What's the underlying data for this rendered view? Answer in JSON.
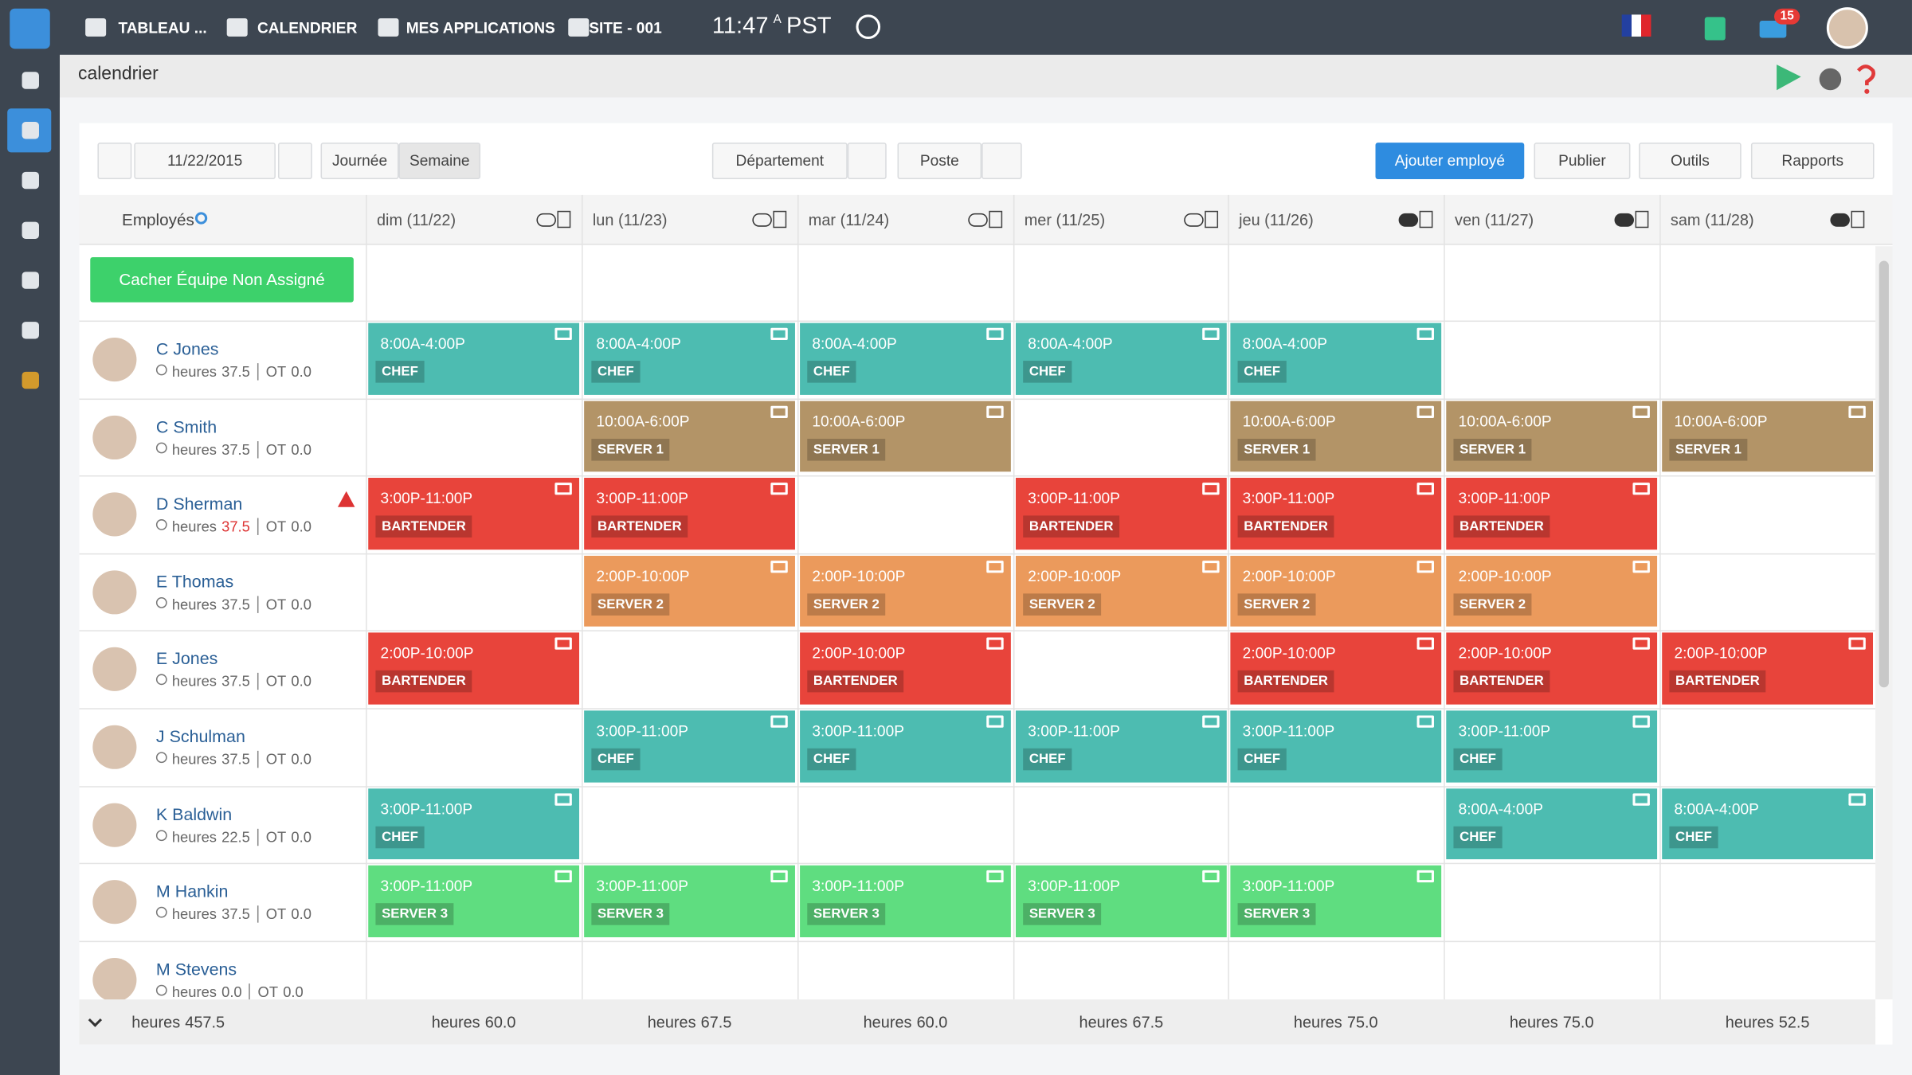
{
  "nav": {
    "items": [
      "TABLEAU ...",
      "CALENDRIER",
      "MES APPLICATIONS",
      "SITE - 001"
    ],
    "time": "11:47",
    "time_suffix": "A",
    "timezone": "PST",
    "badge": "15"
  },
  "page_title": "calendrier",
  "toolbar": {
    "date": "11/22/2015",
    "views": [
      "Journée",
      "Semaine"
    ],
    "filters": [
      "Département",
      "Poste"
    ],
    "actions": [
      "Ajouter employé",
      "Publier",
      "Outils",
      "Rapports"
    ]
  },
  "header": {
    "employees": "Employés",
    "days": [
      "dim (11/22)",
      "lun (11/23)",
      "mar (11/24)",
      "mer (11/25)",
      "jeu (11/26)",
      "ven (11/27)",
      "sam (11/28)"
    ]
  },
  "unassigned_button": "Cacher Équipe Non Assigné",
  "labels": {
    "hours": "heures",
    "ot": "OT"
  },
  "role_colors": {
    "CHEF": "#4dbcb1",
    "SERVER 1": "#b39467",
    "BARTENDER": "#e8443b",
    "SERVER 2": "#eb9a5c",
    "SERVER 3": "#5fdd80"
  },
  "employees": [
    {
      "name": "C Jones",
      "hours": "37.5",
      "ot": "0.0",
      "shifts": [
        {
          "time": "8:00A-4:00P",
          "role": "CHEF"
        },
        {
          "time": "8:00A-4:00P",
          "role": "CHEF"
        },
        {
          "time": "8:00A-4:00P",
          "role": "CHEF"
        },
        {
          "time": "8:00A-4:00P",
          "role": "CHEF"
        },
        {
          "time": "8:00A-4:00P",
          "role": "CHEF"
        },
        null,
        null
      ]
    },
    {
      "name": "C Smith",
      "hours": "37.5",
      "ot": "0.0",
      "shifts": [
        null,
        {
          "time": "10:00A-6:00P",
          "role": "SERVER 1"
        },
        {
          "time": "10:00A-6:00P",
          "role": "SERVER 1"
        },
        null,
        {
          "time": "10:00A-6:00P",
          "role": "SERVER 1"
        },
        {
          "time": "10:00A-6:00P",
          "role": "SERVER 1"
        },
        {
          "time": "10:00A-6:00P",
          "role": "SERVER 1"
        }
      ]
    },
    {
      "name": "D Sherman",
      "hours": "37.5",
      "ot": "0.0",
      "warning": true,
      "shifts": [
        {
          "time": "3:00P-11:00P",
          "role": "BARTENDER"
        },
        {
          "time": "3:00P-11:00P",
          "role": "BARTENDER"
        },
        null,
        {
          "time": "3:00P-11:00P",
          "role": "BARTENDER"
        },
        {
          "time": "3:00P-11:00P",
          "role": "BARTENDER"
        },
        {
          "time": "3:00P-11:00P",
          "role": "BARTENDER"
        },
        null
      ]
    },
    {
      "name": "E Thomas",
      "hours": "37.5",
      "ot": "0.0",
      "shifts": [
        null,
        {
          "time": "2:00P-10:00P",
          "role": "SERVER 2"
        },
        {
          "time": "2:00P-10:00P",
          "role": "SERVER 2"
        },
        {
          "time": "2:00P-10:00P",
          "role": "SERVER 2"
        },
        {
          "time": "2:00P-10:00P",
          "role": "SERVER 2"
        },
        {
          "time": "2:00P-10:00P",
          "role": "SERVER 2"
        },
        null
      ]
    },
    {
      "name": "E Jones",
      "hours": "37.5",
      "ot": "0.0",
      "shifts": [
        {
          "time": "2:00P-10:00P",
          "role": "BARTENDER"
        },
        null,
        {
          "time": "2:00P-10:00P",
          "role": "BARTENDER"
        },
        null,
        {
          "time": "2:00P-10:00P",
          "role": "BARTENDER"
        },
        {
          "time": "2:00P-10:00P",
          "role": "BARTENDER"
        },
        {
          "time": "2:00P-10:00P",
          "role": "BARTENDER"
        }
      ]
    },
    {
      "name": "J Schulman",
      "hours": "37.5",
      "ot": "0.0",
      "shifts": [
        null,
        {
          "time": "3:00P-11:00P",
          "role": "CHEF"
        },
        {
          "time": "3:00P-11:00P",
          "role": "CHEF"
        },
        {
          "time": "3:00P-11:00P",
          "role": "CHEF"
        },
        {
          "time": "3:00P-11:00P",
          "role": "CHEF"
        },
        {
          "time": "3:00P-11:00P",
          "role": "CHEF"
        },
        null
      ]
    },
    {
      "name": "K Baldwin",
      "hours": "22.5",
      "ot": "0.0",
      "shifts": [
        {
          "time": "3:00P-11:00P",
          "role": "CHEF"
        },
        null,
        null,
        null,
        null,
        {
          "time": "8:00A-4:00P",
          "role": "CHEF"
        },
        {
          "time": "8:00A-4:00P",
          "role": "CHEF"
        }
      ]
    },
    {
      "name": "M Hankin",
      "hours": "37.5",
      "ot": "0.0",
      "shifts": [
        {
          "time": "3:00P-11:00P",
          "role": "SERVER 3"
        },
        {
          "time": "3:00P-11:00P",
          "role": "SERVER 3"
        },
        {
          "time": "3:00P-11:00P",
          "role": "SERVER 3"
        },
        {
          "time": "3:00P-11:00P",
          "role": "SERVER 3"
        },
        {
          "time": "3:00P-11:00P",
          "role": "SERVER 3"
        },
        null,
        null
      ]
    },
    {
      "name": "M Stevens",
      "hours": "0.0",
      "ot": "0.0",
      "shifts": [
        null,
        null,
        null,
        null,
        null,
        null,
        null
      ]
    }
  ],
  "footer": {
    "total": "457.5",
    "days": [
      "60.0",
      "67.5",
      "60.0",
      "67.5",
      "75.0",
      "75.0",
      "52.5"
    ]
  }
}
